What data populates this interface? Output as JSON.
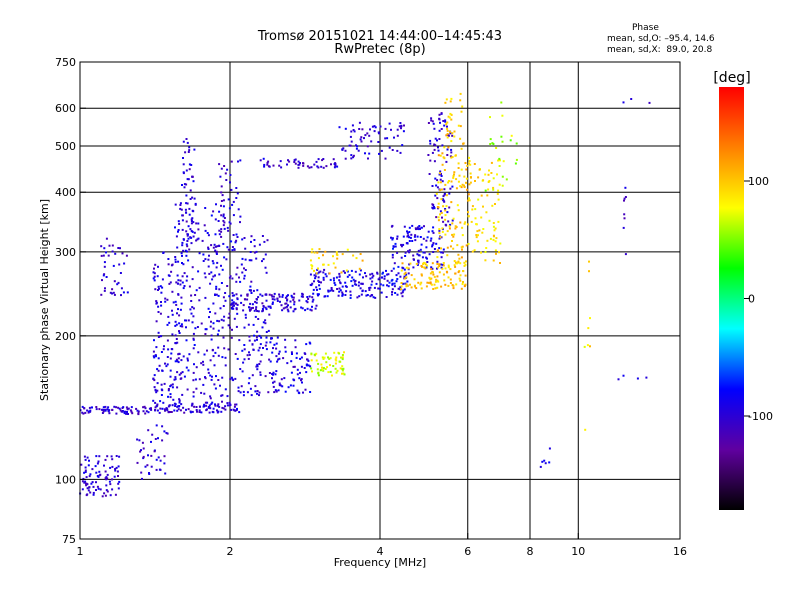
{
  "header": {
    "title_line1": "Tromsø 20151021 14:44:00–14:45:43",
    "title_line2": "RwPretec (8p)"
  },
  "phase_stats": {
    "heading": "Phase",
    "line1": "mean, sd,O: –95.4, 14.6",
    "line2": "mean, sd,X:  89.0, 20.8"
  },
  "chart_data": {
    "type": "scatter",
    "xlabel": "Frequency [MHz]",
    "ylabel": "Stationary phase Virtual Height [km]",
    "xscale": "log",
    "yscale": "log",
    "xlim": [
      1,
      16
    ],
    "ylim": [
      75,
      750
    ],
    "xticks": [
      1,
      2,
      4,
      6,
      8,
      10,
      16
    ],
    "yticks": [
      75,
      100,
      200,
      300,
      400,
      500,
      600,
      750
    ],
    "xgrid": [
      2,
      4,
      6,
      8,
      10
    ],
    "ygrid": [
      100,
      200,
      300,
      400,
      500,
      600
    ],
    "colorbar": {
      "label": "[deg]",
      "range": [
        -180,
        180
      ],
      "ticks": [
        100,
        0,
        -100
      ],
      "stops": [
        "#ff0000",
        "#ff8000",
        "#ffff00",
        "#00ff00",
        "#00ffff",
        "#0000ff",
        "#6000a0",
        "#000000"
      ]
    },
    "series": [
      {
        "values": [
          {
            "xr": [
              1.0,
              1.2
            ],
            "yr": [
              92,
              112
            ],
            "phase": -100,
            "n": 90
          },
          {
            "xr": [
              1.0,
              1.45
            ],
            "yr": [
              137,
              142
            ],
            "phase": -100,
            "n": 80
          },
          {
            "xr": [
              1.45,
              2.1
            ],
            "yr": [
              138,
              145
            ],
            "phase": -100,
            "n": 90
          },
          {
            "xr": [
              1.3,
              1.5
            ],
            "yr": [
              100,
              130
            ],
            "phase": -100,
            "n": 40
          },
          {
            "xr": [
              1.4,
              1.6
            ],
            "yr": [
              140,
              300
            ],
            "phase": -95,
            "n": 160
          },
          {
            "xr": [
              1.55,
              2.0
            ],
            "yr": [
              145,
              380
            ],
            "phase": -95,
            "n": 260
          },
          {
            "xr": [
              1.6,
              1.7
            ],
            "yr": [
              300,
              520
            ],
            "phase": -100,
            "n": 60
          },
          {
            "xr": [
              1.1,
              1.25
            ],
            "yr": [
              240,
              320
            ],
            "phase": -100,
            "n": 40
          },
          {
            "xr": [
              2.0,
              2.9
            ],
            "yr": [
              150,
              200
            ],
            "phase": -95,
            "n": 160
          },
          {
            "xr": [
              2.0,
              2.4
            ],
            "yr": [
              200,
              330
            ],
            "phase": -95,
            "n": 90
          },
          {
            "xr": [
              1.9,
              2.1
            ],
            "yr": [
              330,
              480
            ],
            "phase": -100,
            "n": 40
          },
          {
            "xr": [
              2.0,
              3.0
            ],
            "yr": [
              225,
              245
            ],
            "phase": -100,
            "n": 120
          },
          {
            "xr": [
              2.9,
              4.6
            ],
            "yr": [
              240,
              275
            ],
            "phase": -90,
            "n": 180
          },
          {
            "xr": [
              4.2,
              5.4
            ],
            "yr": [
              275,
              340
            ],
            "phase": -90,
            "n": 120
          },
          {
            "xr": [
              5.0,
              5.6
            ],
            "yr": [
              340,
              590
            ],
            "phase": -100,
            "n": 90
          },
          {
            "xr": [
              2.3,
              3.3
            ],
            "yr": [
              450,
              470
            ],
            "phase": -100,
            "n": 50
          },
          {
            "xr": [
              3.3,
              4.5
            ],
            "yr": [
              470,
              560
            ],
            "phase": -100,
            "n": 70
          },
          {
            "xr": [
              2.9,
              3.4
            ],
            "yr": [
              165,
              185
            ],
            "phase": 70,
            "n": 60
          },
          {
            "xr": [
              2.9,
              3.7
            ],
            "yr": [
              270,
              305
            ],
            "phase": 95,
            "n": 35
          },
          {
            "xr": [
              4.4,
              6.0
            ],
            "yr": [
              250,
              285
            ],
            "phase": 100,
            "n": 110
          },
          {
            "xr": [
              5.2,
              6.1
            ],
            "yr": [
              280,
              500
            ],
            "phase": 100,
            "n": 120
          },
          {
            "xr": [
              5.4,
              5.9
            ],
            "yr": [
              500,
              650
            ],
            "phase": 100,
            "n": 30
          },
          {
            "xr": [
              6.0,
              7.0
            ],
            "yr": [
              280,
              470
            ],
            "phase": 90,
            "n": 80
          },
          {
            "xr": [
              6.5,
              7.6
            ],
            "yr": [
              400,
              620
            ],
            "phase": 60,
            "n": 25
          },
          {
            "xr": [
              8.2,
              8.8
            ],
            "yr": [
              105,
              125
            ],
            "phase": -80,
            "n": 6
          },
          {
            "xr": [
              10.3,
              10.6
            ],
            "yr": [
              120,
              300
            ],
            "phase": 90,
            "n": 8
          },
          {
            "xr": [
              12.3,
              12.5
            ],
            "yr": [
              290,
              420
            ],
            "phase": -100,
            "n": 8
          },
          {
            "xr": [
              11.5,
              14.5
            ],
            "yr": [
              160,
              165
            ],
            "phase": -100,
            "n": 4
          },
          {
            "xr": [
              12.3,
              14.0
            ],
            "yr": [
              610,
              630
            ],
            "phase": -100,
            "n": 3
          }
        ]
      }
    ]
  }
}
